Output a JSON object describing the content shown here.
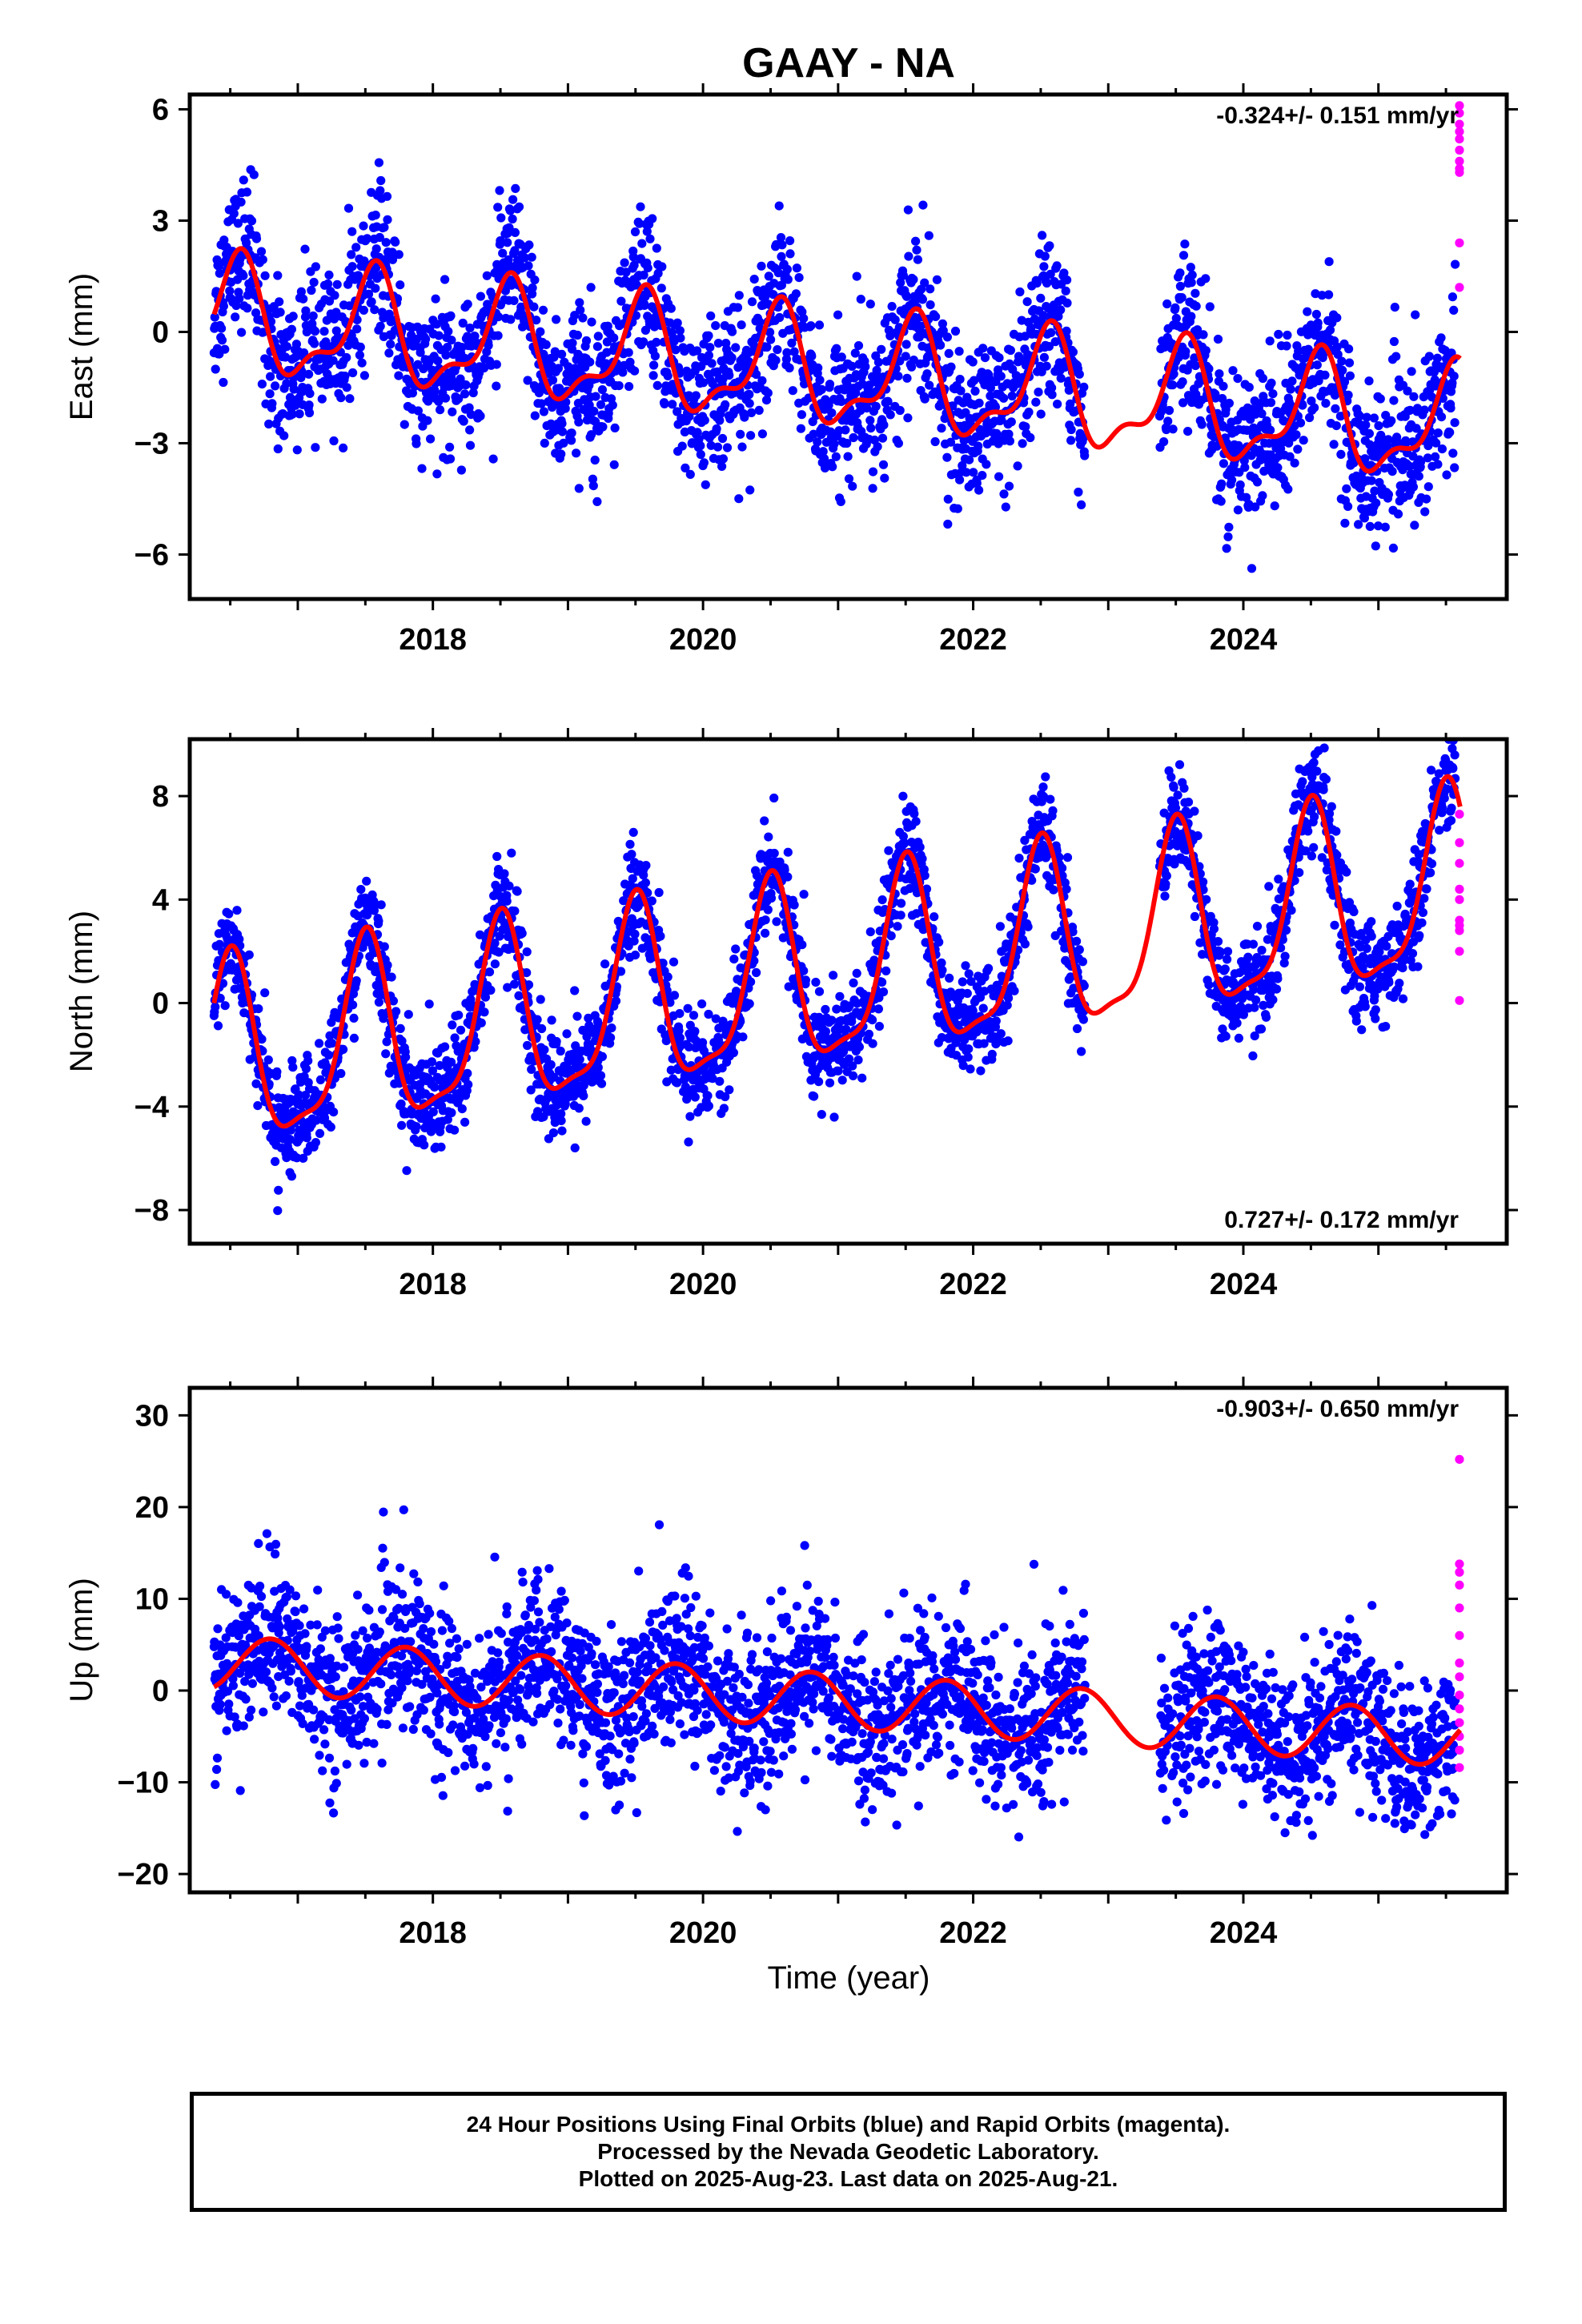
{
  "title": "GAAY - NA",
  "xlabel": "Time (year)",
  "footer": {
    "line1": "24 Hour Positions Using Final Orbits (blue) and Rapid Orbits (magenta).",
    "line2": "Processed by the Nevada Geodetic Laboratory.",
    "line3": "Plotted on 2025-Aug-23. Last data on 2025-Aug-21."
  },
  "colors": {
    "final_orbits": "#0000ff",
    "rapid_orbits": "#ff00ff",
    "model": "#ff0000",
    "axes": "#000000"
  },
  "chart_data": [
    {
      "type": "scatter",
      "name": "east",
      "ylabel": "East (mm)",
      "rate_text": "-0.324+/- 0.151 mm/yr",
      "rate_position": "top-right",
      "xlim": [
        2016.2,
        2025.95
      ],
      "ylim": [
        -7.2,
        6.4
      ],
      "xticks": [
        2018,
        2020,
        2022,
        2024
      ],
      "yticks": [
        -6,
        -3,
        0,
        3,
        6
      ],
      "rate": -0.324,
      "offset": 0.35,
      "annual_amp": 1.4,
      "annual_phase": 0.55,
      "semi_amp": 0.6,
      "semi_phase": 0.6,
      "scatter": 1.0,
      "rapid_y": [
        6.1,
        5.9,
        5.6,
        5.4,
        5.2,
        4.9,
        4.6,
        4.4,
        4.3,
        2.4,
        1.2
      ]
    },
    {
      "type": "scatter",
      "name": "north",
      "ylabel": "North (mm)",
      "rate_text": "0.727+/- 0.172 mm/yr",
      "rate_position": "bottom-right",
      "xlim": [
        2016.2,
        2025.95
      ],
      "ylim": [
        -9.3,
        10.2
      ],
      "xticks": [
        2018,
        2020,
        2022,
        2024
      ],
      "yticks": [
        -8,
        -4,
        0,
        4,
        8
      ],
      "rate": 0.727,
      "offset": -2.35,
      "annual_amp": 3.5,
      "annual_phase": 0.5,
      "semi_amp": 1.0,
      "semi_phase": 0.52,
      "scatter": 1.0,
      "rapid_y": [
        7.3,
        6.2,
        5.4,
        4.4,
        4.0,
        3.2,
        3.0,
        2.8,
        2.0,
        0.1
      ]
    },
    {
      "type": "scatter",
      "name": "up",
      "ylabel": "Up (mm)",
      "rate_text": "-0.903+/- 0.650 mm/yr",
      "rate_position": "top-right",
      "xlim": [
        2016.2,
        2025.95
      ],
      "ylim": [
        -22,
        33
      ],
      "xticks": [
        2018,
        2020,
        2022,
        2024
      ],
      "yticks": [
        -20,
        -10,
        0,
        10,
        20,
        30
      ],
      "rate": -0.903,
      "offset": 3.0,
      "annual_amp": 3.0,
      "annual_phase": 0.8,
      "semi_amp": 0.0,
      "semi_phase": 0.0,
      "scatter": 4.2,
      "rapid_y": [
        25.2,
        13.8,
        12.9,
        11.5,
        9.0,
        6.0,
        3.0,
        1.5,
        -0.5,
        -2.0,
        -3.5,
        -5.0,
        -6.5,
        -8.4
      ]
    }
  ],
  "data_span": {
    "start": 2016.38,
    "gap_start": 2022.83,
    "gap_end": 2023.38,
    "final_end": 2025.57,
    "rapid_x": 2025.6
  }
}
